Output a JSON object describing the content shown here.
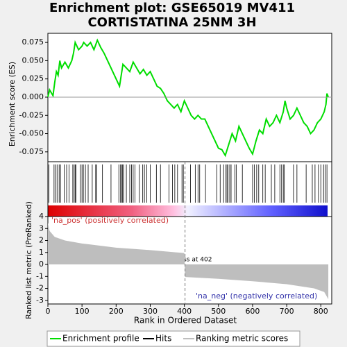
{
  "chart_data": [
    {
      "type": "line",
      "title": [
        "Enrichment plot: GSE65019 MV411",
        "CORTISTATINA 25NM 3H"
      ],
      "ylabel": "Enrichment score (ES)",
      "xlim": [
        0,
        832
      ],
      "ylim": [
        -0.0885,
        0.0875
      ],
      "yticks": [
        0.075,
        {
          "value": 0.05,
          "label": "0.050"
        },
        0.025,
        {
          "value": 0,
          "label": "0.000"
        },
        -0.025,
        {
          "value": -0.05,
          "label": "-0.050"
        },
        -0.075
      ],
      "x": [
        0,
        5,
        15,
        20,
        25,
        30,
        35,
        40,
        50,
        60,
        70,
        75,
        80,
        90,
        100,
        105,
        115,
        125,
        135,
        145,
        155,
        165,
        180,
        190,
        200,
        210,
        220,
        230,
        240,
        250,
        260,
        270,
        280,
        290,
        300,
        310,
        320,
        330,
        340,
        350,
        360,
        370,
        380,
        390,
        400,
        410,
        420,
        430,
        440,
        450,
        460,
        470,
        480,
        490,
        500,
        510,
        520,
        530,
        540,
        550,
        560,
        570,
        580,
        590,
        600,
        610,
        620,
        630,
        640,
        650,
        660,
        670,
        680,
        690,
        695,
        700,
        710,
        720,
        730,
        740,
        750,
        760,
        770,
        780,
        790,
        800,
        810,
        815,
        818,
        822
      ],
      "series": [
        {
          "name": "Enrichment profile",
          "color": "#00dd00",
          "values": [
            0,
            0.01,
            0.002,
            0.02,
            0.035,
            0.03,
            0.05,
            0.04,
            0.048,
            0.04,
            0.05,
            0.06,
            0.075,
            0.065,
            0.07,
            0.075,
            0.07,
            0.075,
            0.065,
            0.078,
            0.068,
            0.06,
            0.045,
            0.035,
            0.025,
            0.015,
            0.045,
            0.04,
            0.035,
            0.048,
            0.04,
            0.032,
            0.038,
            0.03,
            0.035,
            0.025,
            0.015,
            0.012,
            0.005,
            -0.005,
            -0.01,
            -0.015,
            -0.01,
            -0.02,
            -0.005,
            -0.015,
            -0.025,
            -0.03,
            -0.025,
            -0.03,
            -0.03,
            -0.04,
            -0.05,
            -0.06,
            -0.07,
            -0.072,
            -0.08,
            -0.065,
            -0.05,
            -0.06,
            -0.04,
            -0.05,
            -0.06,
            -0.07,
            -0.078,
            -0.06,
            -0.045,
            -0.05,
            -0.03,
            -0.04,
            -0.035,
            -0.025,
            -0.035,
            -0.02,
            -0.005,
            -0.015,
            -0.03,
            -0.025,
            -0.015,
            -0.025,
            -0.035,
            -0.04,
            -0.05,
            -0.045,
            -0.035,
            -0.03,
            -0.02,
            -0.01,
            0.005,
            0
          ]
        }
      ],
      "hits": {
        "name": "Hits",
        "color": "#000000",
        "x": [
          3,
          18,
          22,
          27,
          33,
          37,
          48,
          55,
          62,
          73,
          77,
          80,
          82,
          95,
          100,
          104,
          110,
          118,
          130,
          140,
          143,
          160,
          185,
          208,
          213,
          216,
          219,
          222,
          230,
          240,
          245,
          250,
          255,
          268,
          278,
          283,
          290,
          300,
          318,
          330,
          355,
          365,
          372,
          380,
          393,
          397,
          418,
          432,
          440,
          445,
          462,
          495,
          505,
          515,
          522,
          525,
          528,
          533,
          537,
          548,
          552,
          570,
          600,
          605,
          612,
          618,
          630,
          637,
          655,
          665,
          680,
          685,
          690,
          693,
          720,
          730,
          757,
          775,
          783,
          793,
          800,
          808,
          813,
          818
        ]
      }
    },
    {
      "type": "area",
      "xlabel": "Rank in Ordered Dataset",
      "ylabel": "Ranked list metric (PreRanked)",
      "xlim": [
        0,
        832
      ],
      "xticks": [
        0,
        100,
        200,
        300,
        400,
        500,
        600,
        700,
        800
      ],
      "ylim": [
        -3.3,
        4
      ],
      "yticks": [
        -3,
        -2,
        -1,
        0,
        1,
        2,
        3,
        4
      ],
      "zero_cross": 402,
      "annotations": [
        "'na_pos' (positively correlated)",
        "'na_neg' (negatively correlated)",
        "Zero cross at 402"
      ],
      "x": [
        0,
        5,
        20,
        50,
        100,
        200,
        300,
        400,
        402,
        500,
        600,
        700,
        780,
        810,
        822
      ],
      "series": [
        {
          "name": "Ranking metric scores",
          "color": "#bebebe",
          "values": [
            3.5,
            2.8,
            2.3,
            2.0,
            1.75,
            1.4,
            1.2,
            0.95,
            -1.05,
            -1.2,
            -1.4,
            -1.65,
            -2.0,
            -2.3,
            -2.9
          ]
        }
      ]
    }
  ]
}
